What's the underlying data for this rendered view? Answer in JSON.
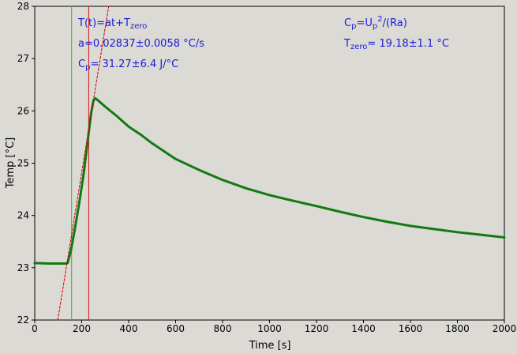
{
  "chart_data": {
    "type": "line",
    "xlabel": "Time [s]",
    "ylabel": "Temp [°C]",
    "xlim": [
      0,
      2000
    ],
    "ylim": [
      22,
      28
    ],
    "x_ticks": [
      0,
      200,
      400,
      600,
      800,
      1000,
      1200,
      1400,
      1600,
      1800,
      2000
    ],
    "y_ticks": [
      22,
      23,
      24,
      25,
      26,
      27,
      28
    ],
    "grid": false,
    "series": [
      {
        "color": "#127a12",
        "points": [
          [
            0,
            23.09
          ],
          [
            60,
            23.08
          ],
          [
            100,
            23.08
          ],
          [
            130,
            23.08
          ],
          [
            140,
            23.09
          ],
          [
            155,
            23.35
          ],
          [
            170,
            23.72
          ],
          [
            190,
            24.25
          ],
          [
            210,
            24.85
          ],
          [
            225,
            25.4
          ],
          [
            240,
            25.95
          ],
          [
            250,
            26.2
          ],
          [
            258,
            26.24
          ],
          [
            270,
            26.2
          ],
          [
            300,
            26.08
          ],
          [
            350,
            25.9
          ],
          [
            400,
            25.7
          ],
          [
            450,
            25.55
          ],
          [
            500,
            25.38
          ],
          [
            600,
            25.08
          ],
          [
            700,
            24.87
          ],
          [
            800,
            24.68
          ],
          [
            900,
            24.52
          ],
          [
            1000,
            24.39
          ],
          [
            1100,
            24.28
          ],
          [
            1200,
            24.18
          ],
          [
            1300,
            24.07
          ],
          [
            1400,
            23.97
          ],
          [
            1500,
            23.88
          ],
          [
            1600,
            23.8
          ],
          [
            1700,
            23.74
          ],
          [
            1800,
            23.68
          ],
          [
            1900,
            23.63
          ],
          [
            2000,
            23.58
          ]
        ]
      },
      {
        "color": "#cc0000",
        "style": "dashed",
        "points": [
          [
            98,
            22.0
          ],
          [
            315,
            28.0
          ]
        ]
      }
    ],
    "vlines": [
      {
        "x": 157,
        "color": "#22c422"
      },
      {
        "x": 230,
        "color": "#d01010"
      }
    ],
    "annotations": {
      "fit_parts": [
        "T(t)=at+T",
        "zero"
      ],
      "a_value": "a=0.02837±0.0058 °C/s",
      "cp_value_parts": [
        "C",
        "p",
        "= 31.27±6.4 J/°C"
      ],
      "cp_formula_parts": [
        "C",
        "p",
        "=U",
        "p",
        "2",
        "/(Ra)"
      ],
      "tzero_parts": [
        "T",
        "zero",
        "= 19.18±1.1 °C"
      ]
    },
    "colors": {
      "background": "#dcdad5",
      "annotation": "#1a1ad6"
    }
  }
}
